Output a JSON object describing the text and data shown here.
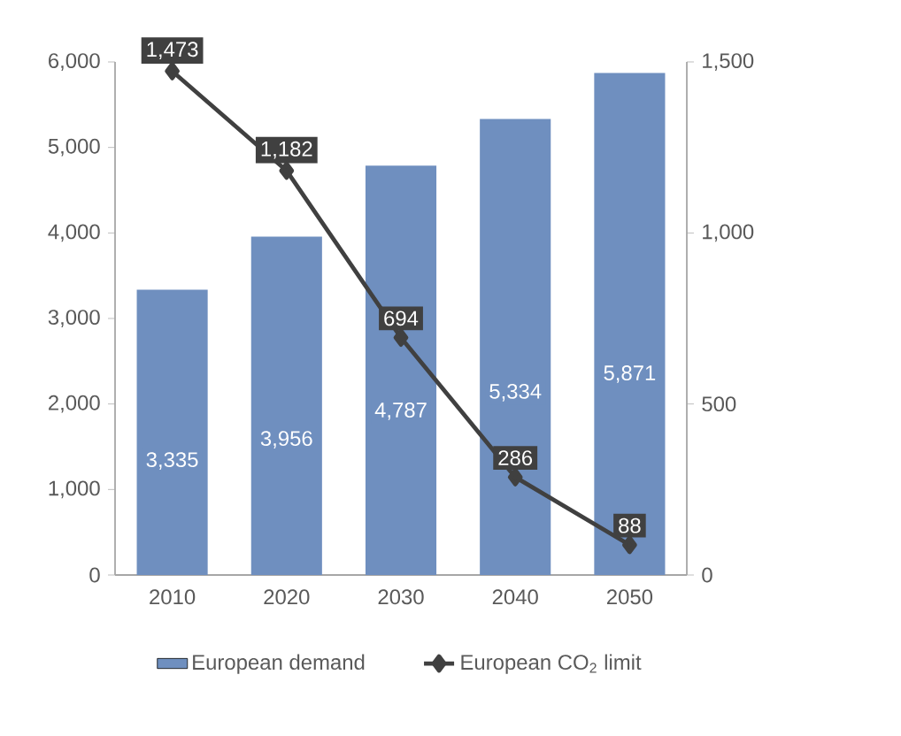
{
  "chart_data": {
    "type": "bar",
    "categories": [
      "2010",
      "2020",
      "2030",
      "2040",
      "2050"
    ],
    "series": [
      {
        "name": "European demand",
        "color": "#6f8fbf",
        "values": [
          3335,
          3956,
          4787,
          5334,
          5871
        ],
        "value_labels": [
          "3,335",
          "3,956",
          "4,787",
          "5,334",
          "5,871"
        ]
      },
      {
        "name": "European CO$_{2}$ limit",
        "type": "line",
        "axis": "y2",
        "color": "#404040",
        "marker": "diamond",
        "line_style": "solid",
        "values": [
          1473,
          1182,
          694,
          286,
          88
        ],
        "value_labels": [
          "1,473",
          "1,182",
          "694",
          "286",
          "88"
        ]
      }
    ],
    "ylim": [
      0,
      6000
    ],
    "yticks": [
      0,
      {
        "value": 1000,
        "label": "1,000"
      },
      {
        "value": 2000,
        "label": "2,000"
      },
      {
        "value": 3000,
        "label": "3,000"
      },
      {
        "value": 4000,
        "label": "4,000"
      },
      {
        "value": 5000,
        "label": "5,000"
      },
      {
        "value": 6000,
        "label": "6,000"
      }
    ],
    "y2lim": [
      0,
      1500
    ],
    "y2ticks": [
      0,
      500,
      {
        "value": 1000,
        "label": "1,000"
      },
      {
        "value": 1500,
        "label": "1,500"
      }
    ],
    "grid": false,
    "legend": "bottom"
  }
}
